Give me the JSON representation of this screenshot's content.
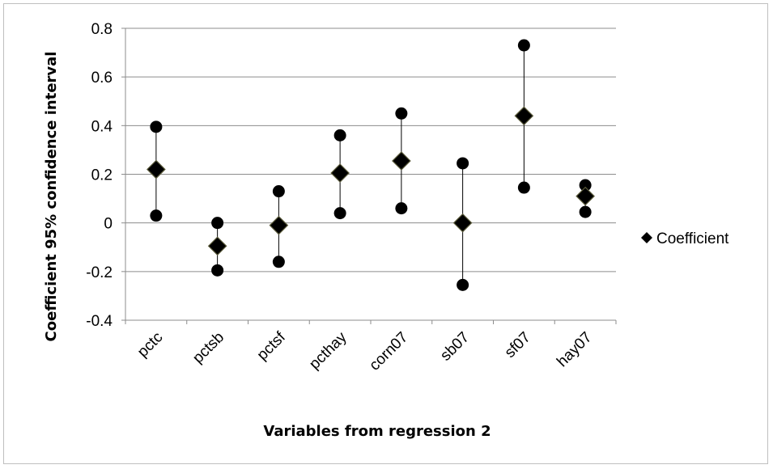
{
  "chart_data": {
    "type": "scatter",
    "title": "",
    "xlabel": "Variables from regression 2",
    "ylabel": "Coefficient 95% confidence interval",
    "categories": [
      "pctc",
      "pctsb",
      "pctsf",
      "pcthay",
      "corn07",
      "sb07",
      "sf07",
      "hay07"
    ],
    "ylim": [
      -0.4,
      0.8
    ],
    "yticks": [
      -0.4,
      -0.2,
      0,
      0.2,
      0.4,
      0.6,
      0.8
    ],
    "ytick_labels": [
      "-0.4",
      "-0.2",
      "0",
      "0.2",
      "0.4",
      "0.6",
      "0.8"
    ],
    "grid": true,
    "legend_position": "right",
    "series": [
      {
        "name": "Coefficient",
        "marker": "diamond",
        "color": "#000000",
        "values": [
          0.22,
          -0.095,
          -0.01,
          0.205,
          0.255,
          0.0,
          0.44,
          0.11
        ]
      }
    ],
    "upper": [
      0.395,
      0.0,
      0.13,
      0.36,
      0.45,
      0.245,
      0.73,
      0.155
    ],
    "lower": [
      0.03,
      -0.195,
      -0.16,
      0.04,
      0.06,
      -0.255,
      0.145,
      0.045
    ]
  }
}
